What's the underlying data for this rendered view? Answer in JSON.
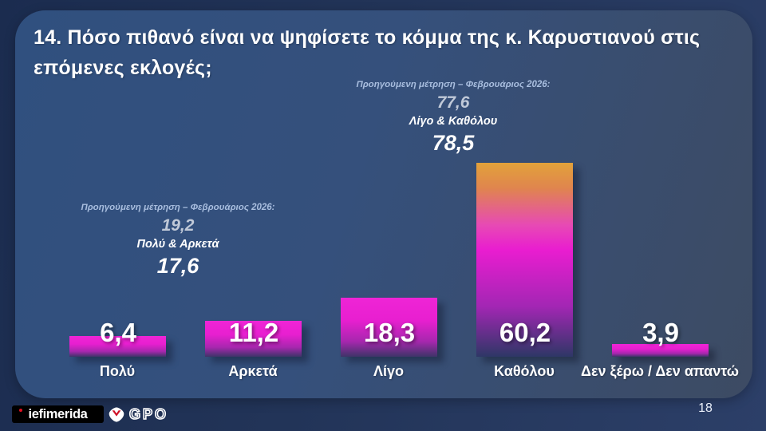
{
  "slide": {
    "title": "14. Πόσο πιθανό είναι να ψηφίσετε το κόμμα της κ. Καρυστιανού στις επόμενες εκλογές;",
    "page_number": "18"
  },
  "annotations": {
    "high_group": {
      "header": "Προηγούμενη μέτρηση – Φεβρουάριος 2026:",
      "previous_value": "77,6",
      "group_label": "Λίγο & Καθόλου",
      "current_value": "78,5"
    },
    "low_group": {
      "header": "Προηγούμενη μέτρηση – Φεβρουάριος 2026:",
      "previous_value": "19,2",
      "group_label": "Πολύ & Αρκετά",
      "current_value": "17,6"
    }
  },
  "chart_data": {
    "type": "bar",
    "title": "14. Πόσο πιθανό είναι να ψηφίσετε το κόμμα της κ. Καρυστιανού στις επόμενες εκλογές;",
    "categories": [
      "Πολύ",
      "Αρκετά",
      "Λίγο",
      "Καθόλου",
      "Δεν ξέρω / Δεν απαντώ"
    ],
    "values": [
      6.4,
      11.2,
      18.3,
      60.2,
      3.9
    ],
    "display_values": [
      "6,4",
      "11,2",
      "18,3",
      "60,2",
      "3,9"
    ],
    "ylim": [
      0,
      62
    ],
    "pixels_per_unit": 4.03,
    "grid": false,
    "legend": false,
    "annotations": [
      {
        "text": "Προηγούμενη μέτρηση – Φεβρουάριος 2026: 77,6 · Λίγο & Καθόλου 78,5"
      },
      {
        "text": "Προηγούμενη μέτρηση – Φεβρουάριος 2026: 19,2 · Πολύ & Αρκετά 17,6"
      }
    ]
  },
  "footer": {
    "iefimerida_text": "iefimerida",
    "gpo_text": "GPO"
  },
  "colors": {
    "background_outer": "#22345a",
    "panel_left": "#30507f",
    "panel_right": "#3d4b63",
    "title_text": "#ffffff",
    "annotation_header": "#a9bedf",
    "annotation_previous": "#c0c9d8",
    "accent_magenta": "#e81fd0",
    "accent_gold": "#e2a23a",
    "bar_bottom": "#3e3468",
    "logo_red": "#e01020"
  }
}
